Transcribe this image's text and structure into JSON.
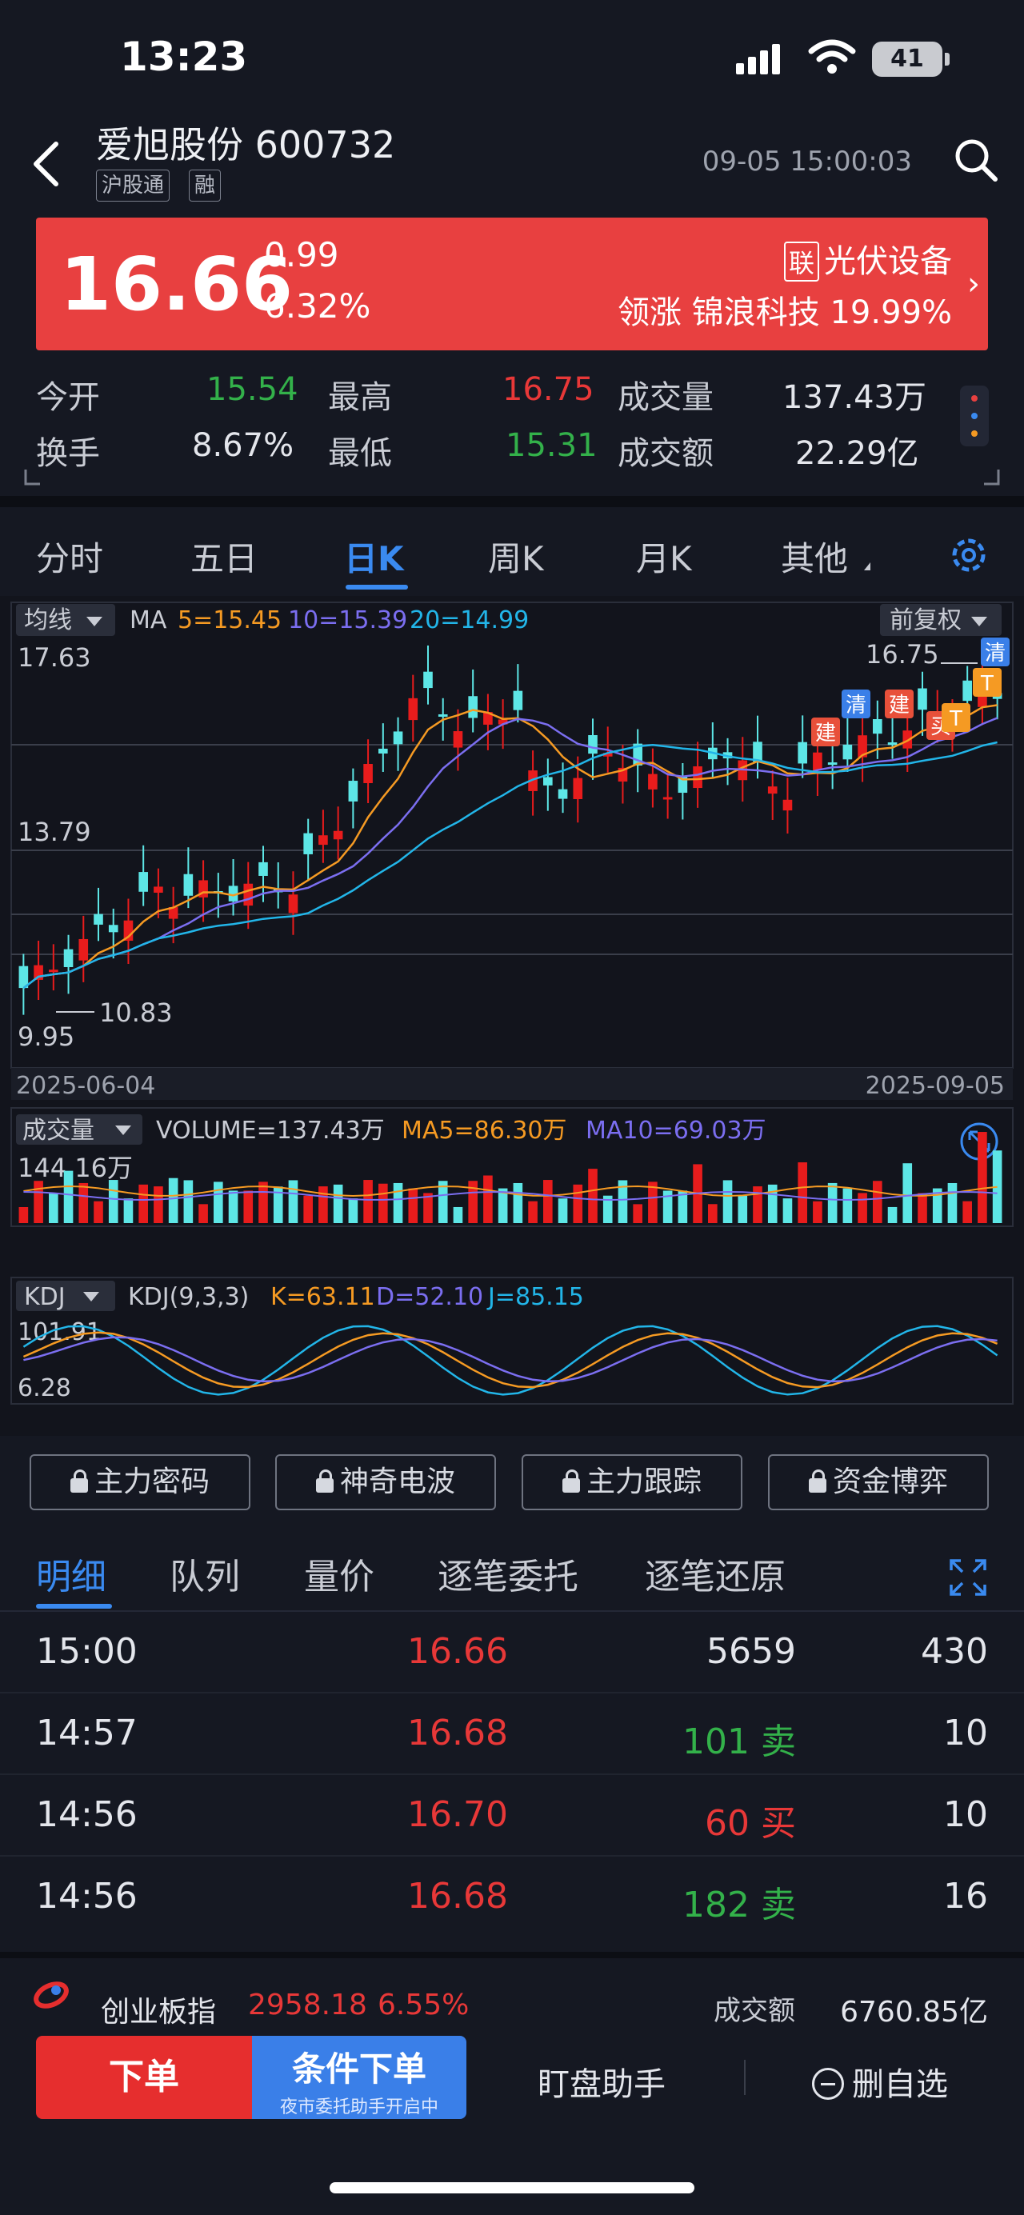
{
  "status": {
    "time": "13:23",
    "battery": "41"
  },
  "header": {
    "name": "爱旭股份 600732",
    "tags": [
      "沪股通",
      "融"
    ],
    "datetime": "09-05 15:00:03"
  },
  "quote": {
    "price": "16.66",
    "change": "0.99",
    "pct": "6.32%",
    "sector_badge": "联",
    "sector": "光伏设备",
    "lead": "领涨 锦浪科技 19.99%"
  },
  "stats": {
    "open_l": "今开",
    "open": "15.54",
    "high_l": "最高",
    "high": "16.75",
    "vol_l": "成交量",
    "vol": "137.43万",
    "turn_l": "换手",
    "turn": "8.67%",
    "low_l": "最低",
    "low": "15.31",
    "amt_l": "成交额",
    "amt": "22.29亿"
  },
  "tabs": [
    "分时",
    "五日",
    "日K",
    "周K",
    "月K",
    "其他"
  ],
  "chart_data": {
    "type": "candlestick",
    "ma_label": "均线",
    "ma_title": "MA",
    "ma5": "5=15.45",
    "ma10": "10=15.39",
    "ma20": "20=14.99",
    "adj": "前复权",
    "y_ticks": [
      "17.63",
      "13.79",
      "9.95"
    ],
    "hi_mark": "16.75",
    "lo_mark": "10.83",
    "x_start": "2025-06-04",
    "x_end": "2025-09-05",
    "markers": [
      "建",
      "清",
      "建",
      "买",
      "T",
      "T",
      "清"
    ],
    "vol_label": "成交量",
    "vol_text": "VOLUME=137.43万",
    "vol_ma5": "MA5=86.30万",
    "vol_ma10": "MA10=69.03万",
    "vol_top": "144.16万",
    "kdj_label": "KDJ",
    "kdj_text": "KDJ(9,3,3)",
    "kdj_k": "K=63.11",
    "kdj_d": "D=52.10",
    "kdj_j": "J=85.15",
    "kdj_top": "101.91",
    "kdj_bot": "6.28",
    "colors": {
      "up": "#e81c1c",
      "down": "#5de6e6",
      "ma5": "#f59a23",
      "ma10": "#7b6ef0",
      "ma20": "#22b5e8"
    }
  },
  "buttons": [
    "主力密码",
    "神奇电波",
    "主力跟踪",
    "资金博弈"
  ],
  "detail_tabs": [
    "明细",
    "队列",
    "量价",
    "逐笔委托",
    "逐笔还原"
  ],
  "trades": [
    {
      "time": "15:00",
      "price": "16.66",
      "vol": "5659",
      "dir": "",
      "n": "430"
    },
    {
      "time": "14:57",
      "price": "16.68",
      "vol": "101",
      "dir": "卖",
      "n": "10"
    },
    {
      "time": "14:56",
      "price": "16.70",
      "vol": "60",
      "dir": "买",
      "n": "10"
    },
    {
      "time": "14:56",
      "price": "16.68",
      "vol": "182",
      "dir": "卖",
      "n": "16"
    }
  ],
  "index": {
    "name": "创业板指",
    "value": "2958.18",
    "pct": "6.55%",
    "amt_l": "成交额",
    "amt": "6760.85亿"
  },
  "bottom": {
    "order": "下单",
    "cond": "条件下单",
    "cond_sub": "夜市委托助手开启中",
    "helper": "盯盘助手",
    "delfav": "删自选"
  }
}
